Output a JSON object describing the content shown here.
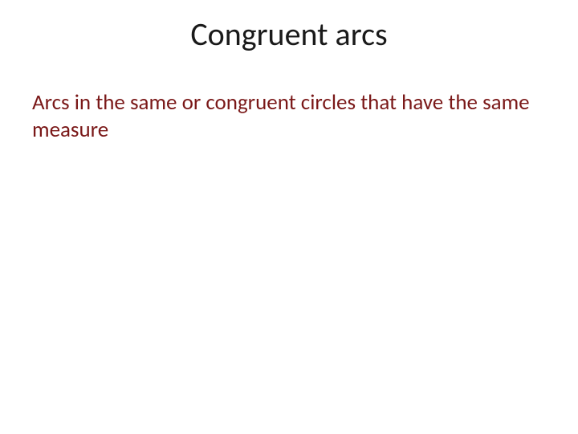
{
  "slide": {
    "title": "Congruent arcs",
    "body": "Arcs in the same or congruent circles that have the same measure",
    "colors": {
      "background": "#ffffff",
      "title_color": "#1a1a1a",
      "body_color": "#7a1818"
    },
    "typography": {
      "title_fontsize": 40,
      "body_fontsize": 27,
      "font_family": "Calibri"
    }
  }
}
